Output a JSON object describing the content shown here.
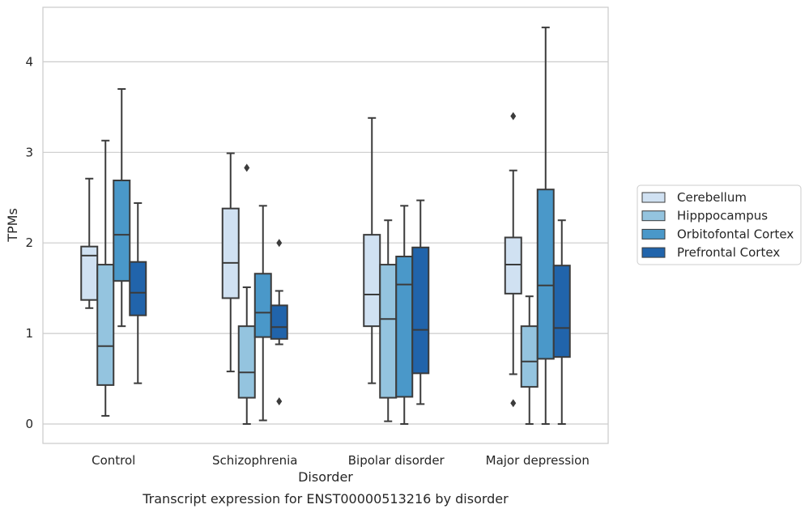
{
  "chart_data": {
    "type": "boxplot",
    "title": "Transcript expression for ENST00000513216 by disorder",
    "xlabel": "Disorder",
    "ylabel": "TPMs",
    "ylim": [
      -0.2,
      4.6
    ],
    "yticks": [
      0,
      1,
      2,
      3,
      4
    ],
    "categories": [
      "Control",
      "Schizophrenia",
      "Bipolar disorder",
      "Major depression"
    ],
    "grid": "horizontal",
    "legend_position": "right",
    "series": [
      {
        "name": "Cerebellum",
        "color": "#d0e1f2",
        "boxes": [
          {
            "whislo": 1.28,
            "q1": 1.37,
            "med": 1.86,
            "q3": 1.96,
            "whishi": 2.71,
            "fliers": []
          },
          {
            "whislo": 0.58,
            "q1": 1.39,
            "med": 1.78,
            "q3": 2.38,
            "whishi": 2.99,
            "fliers": []
          },
          {
            "whislo": 0.45,
            "q1": 1.08,
            "med": 1.43,
            "q3": 2.09,
            "whishi": 3.38,
            "fliers": []
          },
          {
            "whislo": 0.55,
            "q1": 1.44,
            "med": 1.76,
            "q3": 2.06,
            "whishi": 2.8,
            "fliers": [
              3.4,
              0.23
            ]
          }
        ]
      },
      {
        "name": "Hipppocampus",
        "color": "#94c4df",
        "boxes": [
          {
            "whislo": 0.09,
            "q1": 0.43,
            "med": 0.86,
            "q3": 1.76,
            "whishi": 3.13,
            "fliers": []
          },
          {
            "whislo": 0.0,
            "q1": 0.29,
            "med": 0.57,
            "q3": 1.08,
            "whishi": 1.51,
            "fliers": [
              2.83
            ]
          },
          {
            "whislo": 0.03,
            "q1": 0.29,
            "med": 1.16,
            "q3": 1.76,
            "whishi": 2.25,
            "fliers": []
          },
          {
            "whislo": 0.0,
            "q1": 0.41,
            "med": 0.69,
            "q3": 1.08,
            "whishi": 1.41,
            "fliers": []
          }
        ]
      },
      {
        "name": "Orbitofontal Cortex",
        "color": "#4a98c9",
        "boxes": [
          {
            "whislo": 1.08,
            "q1": 1.58,
            "med": 2.09,
            "q3": 2.69,
            "whishi": 3.7,
            "fliers": []
          },
          {
            "whislo": 0.04,
            "q1": 0.96,
            "med": 1.23,
            "q3": 1.66,
            "whishi": 2.41,
            "fliers": []
          },
          {
            "whislo": 0.0,
            "q1": 0.3,
            "med": 1.54,
            "q3": 1.85,
            "whishi": 2.41,
            "fliers": []
          },
          {
            "whislo": 0.0,
            "q1": 0.72,
            "med": 1.53,
            "q3": 2.59,
            "whishi": 4.38,
            "fliers": []
          }
        ]
      },
      {
        "name": "Prefrontal Cortex",
        "color": "#2164ab",
        "boxes": [
          {
            "whislo": 0.45,
            "q1": 1.2,
            "med": 1.45,
            "q3": 1.79,
            "whishi": 2.44,
            "fliers": []
          },
          {
            "whislo": 0.88,
            "q1": 0.94,
            "med": 1.07,
            "q3": 1.31,
            "whishi": 1.47,
            "fliers": [
              2.0,
              0.25
            ]
          },
          {
            "whislo": 0.22,
            "q1": 0.56,
            "med": 1.04,
            "q3": 1.95,
            "whishi": 2.47,
            "fliers": []
          },
          {
            "whislo": 0.0,
            "q1": 0.74,
            "med": 1.06,
            "q3": 1.75,
            "whishi": 2.25,
            "fliers": []
          }
        ]
      }
    ]
  }
}
